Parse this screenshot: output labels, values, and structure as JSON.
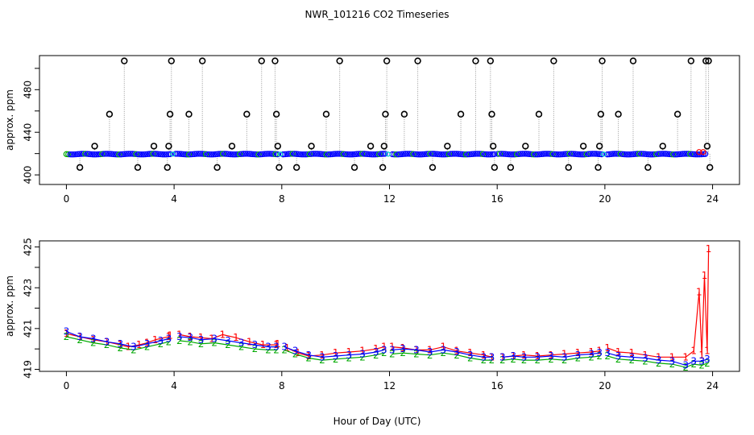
{
  "chart_data": [
    {
      "type": "scatter",
      "title": "NWR_101216  CO2 Timeseries",
      "xlabel": "",
      "ylabel": "approx. ppm",
      "xlim": [
        -1,
        25
      ],
      "ylim": [
        391,
        512
      ],
      "x_ticks": [
        0,
        4,
        8,
        12,
        16,
        20,
        24
      ],
      "x_tick_labels": [
        "0",
        "4",
        "8",
        "12",
        "16",
        "20",
        "24"
      ],
      "y_ticks": [
        400,
        440,
        480
      ],
      "y_tick_labels": [
        "400",
        "440",
        "480"
      ],
      "y_minor_ticks": [
        420,
        460,
        500
      ],
      "baseline_ppm": 419.5,
      "series": [
        {
          "name": "spike samples",
          "color": "#000000",
          "marker": "circle",
          "x": [
            0.5,
            1.05,
            1.6,
            2.15,
            2.65,
            3.25,
            3.75,
            3.8,
            3.85,
            3.9,
            4.55,
            5.05,
            5.6,
            6.15,
            6.7,
            7.25,
            7.75,
            7.8,
            7.85,
            7.9,
            8.55,
            9.1,
            9.65,
            10.15,
            10.7,
            11.3,
            11.75,
            11.8,
            11.85,
            11.9,
            12.55,
            13.05,
            13.6,
            14.15,
            14.65,
            15.2,
            15.75,
            15.8,
            15.85,
            15.9,
            16.5,
            17.05,
            17.55,
            18.1,
            18.65,
            19.2,
            19.75,
            19.8,
            19.85,
            19.9,
            20.5,
            21.05,
            21.6,
            22.15,
            22.7,
            23.2,
            23.75,
            23.8,
            23.85,
            23.9
          ],
          "y": [
            407,
            427,
            457,
            507,
            407,
            427,
            407,
            427,
            457,
            507,
            457,
            507,
            407,
            427,
            457,
            507,
            507,
            457,
            427,
            407,
            407,
            427,
            457,
            507,
            407,
            427,
            407,
            427,
            457,
            507,
            457,
            507,
            407,
            427,
            457,
            507,
            507,
            457,
            427,
            407,
            407,
            427,
            457,
            507,
            407,
            427,
            407,
            427,
            457,
            507,
            457,
            507,
            407,
            427,
            457,
            507,
            507,
            427,
            507,
            407
          ]
        },
        {
          "name": "normal samples",
          "color": "#0000ff",
          "marker": "circle",
          "range_x": [
            0,
            23.8
          ],
          "y": 419.5
        }
      ]
    },
    {
      "type": "line",
      "title": "",
      "xlabel": "Hour of Day (UTC)",
      "ylabel": "approx. ppm",
      "xlim": [
        -1,
        25
      ],
      "ylim": [
        418.9,
        425.3
      ],
      "x_ticks": [
        0,
        4,
        8,
        12,
        16,
        20,
        24
      ],
      "x_tick_labels": [
        "0",
        "4",
        "8",
        "12",
        "16",
        "20",
        "24"
      ],
      "y_ticks": [
        419,
        421,
        423,
        425
      ],
      "y_tick_labels": [
        "419",
        "421",
        "423",
        "425"
      ],
      "y_minor_ticks": [
        420,
        422,
        424
      ],
      "series": [
        {
          "name": "1",
          "label": "1",
          "color": "#ff0000",
          "x": [
            0,
            0.5,
            1,
            1.5,
            2,
            2.3,
            2.7,
            3,
            3.3,
            3.8,
            3.85,
            4.2,
            4.6,
            5,
            5.4,
            5.8,
            6.3,
            6.8,
            7.3,
            7.8,
            7.85,
            8.2,
            8.6,
            9,
            9.5,
            10,
            10.5,
            11,
            11.5,
            11.8,
            12.1,
            12.5,
            13,
            13.5,
            14,
            14.5,
            15,
            15.5,
            15.8,
            16.2,
            16.6,
            17,
            17.5,
            18,
            18.5,
            19,
            19.5,
            19.8,
            20.1,
            20.5,
            21,
            21.5,
            22,
            22.5,
            23,
            23.3,
            23.5,
            23.6,
            23.7,
            23.8,
            23.85
          ],
          "y": [
            420.75,
            420.6,
            420.45,
            420.35,
            420.2,
            420.1,
            420.2,
            420.3,
            420.45,
            420.6,
            420.65,
            420.7,
            420.6,
            420.55,
            420.5,
            420.7,
            420.55,
            420.35,
            420.2,
            420.2,
            420.25,
            420.05,
            419.8,
            419.65,
            419.7,
            419.8,
            419.85,
            419.9,
            420.0,
            420.1,
            420.1,
            420.05,
            419.95,
            419.95,
            420.1,
            419.9,
            419.8,
            419.7,
            419.6,
            419.6,
            419.65,
            419.7,
            419.65,
            419.7,
            419.75,
            419.8,
            419.85,
            419.9,
            420.05,
            419.85,
            419.8,
            419.7,
            419.6,
            419.6,
            419.6,
            419.9,
            422.8,
            419.7,
            423.6,
            419.9,
            424.9
          ]
        },
        {
          "name": "2",
          "label": "2",
          "color": "#00aa00",
          "x": [
            0,
            0.5,
            1,
            1.5,
            2,
            2.5,
            3,
            3.5,
            3.8,
            4.2,
            4.6,
            5,
            5.5,
            6,
            6.5,
            7,
            7.5,
            7.8,
            8.1,
            8.5,
            9,
            9.5,
            10,
            10.5,
            11,
            11.5,
            11.8,
            12.1,
            12.5,
            13,
            13.5,
            14,
            14.5,
            15,
            15.5,
            15.8,
            16.2,
            16.6,
            17,
            17.5,
            18,
            18.5,
            19,
            19.5,
            19.8,
            20.1,
            20.5,
            21,
            21.5,
            22,
            22.5,
            23,
            23.3,
            23.6,
            23.8
          ],
          "y": [
            420.6,
            420.45,
            420.3,
            420.2,
            420.05,
            419.95,
            420.1,
            420.25,
            420.35,
            420.4,
            420.35,
            420.25,
            420.3,
            420.2,
            420.1,
            420.0,
            419.95,
            419.95,
            419.95,
            419.75,
            419.55,
            419.45,
            419.5,
            419.55,
            419.6,
            419.7,
            419.8,
            419.75,
            419.8,
            419.75,
            419.7,
            419.8,
            419.7,
            419.55,
            419.45,
            419.45,
            419.45,
            419.5,
            419.45,
            419.45,
            419.5,
            419.45,
            419.55,
            419.6,
            419.65,
            419.65,
            419.5,
            419.45,
            419.4,
            419.3,
            419.25,
            419.1,
            419.25,
            419.2,
            419.3
          ]
        },
        {
          "name": "3",
          "label": "3",
          "color": "#0000ff",
          "x": [
            0,
            0.5,
            1,
            1.5,
            2,
            2.5,
            3,
            3.5,
            3.8,
            4.2,
            4.6,
            5,
            5.5,
            6,
            6.5,
            7,
            7.5,
            7.8,
            8.1,
            8.5,
            9,
            9.5,
            10,
            10.5,
            11,
            11.5,
            11.8,
            12.1,
            12.5,
            13,
            13.5,
            14,
            14.5,
            15,
            15.5,
            15.8,
            16.2,
            16.6,
            17,
            17.5,
            18,
            18.5,
            19,
            19.5,
            19.8,
            20.1,
            20.5,
            21,
            21.5,
            22,
            22.5,
            23,
            23.3,
            23.6,
            23.8
          ],
          "y": [
            420.85,
            420.6,
            420.5,
            420.35,
            420.25,
            420.1,
            420.25,
            420.4,
            420.5,
            420.6,
            420.55,
            420.45,
            420.5,
            420.4,
            420.3,
            420.2,
            420.1,
            420.1,
            420.1,
            419.9,
            419.7,
            419.6,
            419.65,
            419.7,
            419.75,
            419.85,
            419.95,
            419.95,
            420.0,
            419.95,
            419.85,
            419.95,
            419.85,
            419.7,
            419.6,
            419.6,
            419.6,
            419.65,
            419.6,
            419.6,
            419.65,
            419.6,
            419.7,
            419.75,
            419.8,
            419.8,
            419.65,
            419.6,
            419.55,
            419.45,
            419.4,
            419.2,
            419.4,
            419.4,
            419.5
          ]
        }
      ]
    }
  ]
}
